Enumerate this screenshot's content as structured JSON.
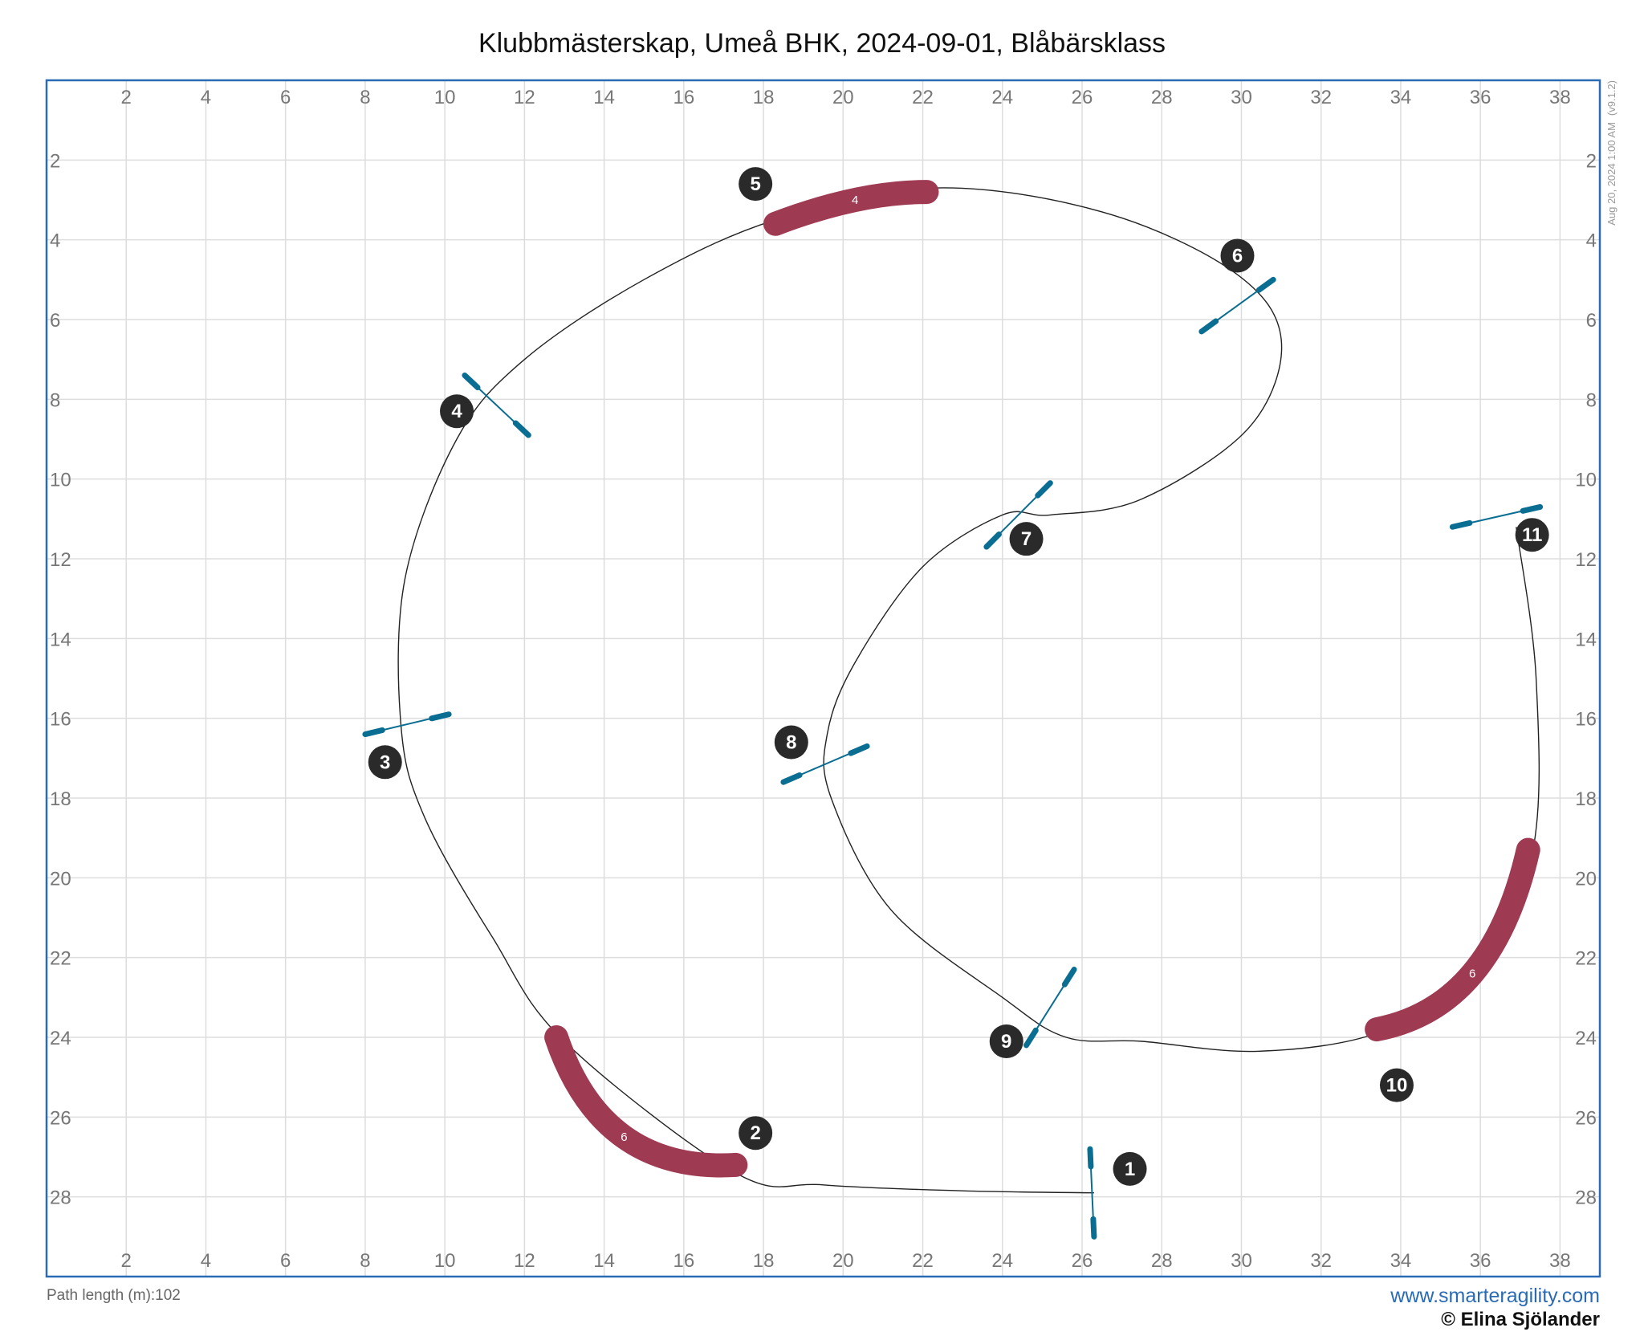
{
  "title": "Klubbmästerskap, Umeå BHK, 2024-09-01, Blåbärsklass",
  "timestamp": "Aug 20, 2024 1:00 AM",
  "version": "(v9.1.2)",
  "path_length_label": "Path length (m):",
  "path_length_value": "102",
  "website": "www.smarteragility.com",
  "copyright": "© Elina Sjölander",
  "colors": {
    "frame": "#2a6bb5",
    "tunnel": "#9e3a52",
    "jump": "#0a6d92",
    "number": "#2a2a2a",
    "path": "#222222",
    "grid": "#dddddd"
  },
  "grid": {
    "x_range": [
      0,
      39
    ],
    "y_range": [
      0,
      30
    ],
    "x_ticks": [
      2,
      4,
      6,
      8,
      10,
      12,
      14,
      16,
      18,
      20,
      22,
      24,
      26,
      28,
      30,
      32,
      34,
      36,
      38
    ],
    "y_ticks": [
      2,
      4,
      6,
      8,
      10,
      12,
      14,
      16,
      18,
      20,
      22,
      24,
      26,
      28
    ]
  },
  "obstacles": [
    {
      "type": "jump",
      "p1": [
        26.2,
        26.8
      ],
      "p2": [
        26.3,
        29.0
      ]
    },
    {
      "type": "tunnel",
      "label": "6",
      "curve": [
        [
          17.3,
          27.2
        ],
        [
          14.5,
          26.5
        ],
        [
          12.8,
          24.0
        ]
      ]
    },
    {
      "type": "jump",
      "p1": [
        8.0,
        16.4
      ],
      "p2": [
        10.1,
        15.9
      ]
    },
    {
      "type": "jump",
      "p1": [
        10.5,
        7.4
      ],
      "p2": [
        12.1,
        8.9
      ]
    },
    {
      "type": "tunnel",
      "label": "4",
      "curve": [
        [
          18.3,
          3.6
        ],
        [
          20.3,
          3.0
        ],
        [
          22.1,
          2.8
        ]
      ]
    },
    {
      "type": "jump",
      "p1": [
        29.0,
        6.3
      ],
      "p2": [
        30.8,
        5.0
      ]
    },
    {
      "type": "jump",
      "p1": [
        23.6,
        11.7
      ],
      "p2": [
        25.2,
        10.1
      ]
    },
    {
      "type": "jump",
      "p1": [
        18.5,
        17.6
      ],
      "p2": [
        20.6,
        16.7
      ]
    },
    {
      "type": "jump",
      "p1": [
        24.6,
        24.2
      ],
      "p2": [
        25.8,
        22.3
      ]
    },
    {
      "type": "tunnel",
      "label": "6",
      "curve": [
        [
          33.4,
          23.8
        ],
        [
          35.8,
          22.4
        ],
        [
          37.2,
          19.3
        ]
      ]
    },
    {
      "type": "jump",
      "p1": [
        35.3,
        11.2
      ],
      "p2": [
        37.5,
        10.7
      ]
    }
  ],
  "numbers": [
    {
      "label": "1",
      "pos": [
        27.2,
        27.3
      ]
    },
    {
      "label": "2",
      "pos": [
        17.8,
        26.4
      ]
    },
    {
      "label": "3",
      "pos": [
        8.5,
        17.1
      ]
    },
    {
      "label": "4",
      "pos": [
        10.3,
        8.3
      ]
    },
    {
      "label": "5",
      "pos": [
        17.8,
        2.6
      ]
    },
    {
      "label": "6",
      "pos": [
        29.9,
        4.4
      ]
    },
    {
      "label": "7",
      "pos": [
        24.6,
        11.5
      ]
    },
    {
      "label": "8",
      "pos": [
        18.7,
        16.6
      ]
    },
    {
      "label": "9",
      "pos": [
        24.1,
        24.1
      ]
    },
    {
      "label": "10",
      "pos": [
        33.9,
        25.2
      ]
    },
    {
      "label": "11",
      "pos": [
        37.3,
        11.4
      ]
    }
  ],
  "path": [
    [
      26.3,
      27.9
    ],
    [
      23.0,
      27.85
    ],
    [
      19.5,
      27.7
    ],
    [
      17.3,
      27.4
    ],
    [
      13.0,
      24.1
    ],
    [
      11.2,
      21.5
    ],
    [
      9.5,
      18.5
    ],
    [
      8.9,
      16.2
    ],
    [
      9.0,
      12.5
    ],
    [
      10.3,
      9.0
    ],
    [
      12.0,
      7.0
    ],
    [
      15.0,
      5.0
    ],
    [
      18.3,
      3.5
    ],
    [
      22.3,
      2.7
    ],
    [
      26.5,
      3.3
    ],
    [
      29.8,
      4.8
    ],
    [
      31.0,
      6.5
    ],
    [
      30.2,
      8.7
    ],
    [
      27.5,
      10.5
    ],
    [
      25.2,
      10.9
    ],
    [
      24.0,
      10.9
    ],
    [
      22.0,
      12.2
    ],
    [
      20.3,
      14.6
    ],
    [
      19.6,
      16.4
    ],
    [
      19.7,
      18.0
    ],
    [
      21.2,
      20.8
    ],
    [
      24.0,
      23.0
    ],
    [
      25.6,
      24.0
    ],
    [
      27.5,
      24.1
    ],
    [
      30.4,
      24.35
    ],
    [
      33.4,
      23.9
    ],
    [
      35.8,
      22.5
    ],
    [
      37.3,
      19.4
    ],
    [
      37.4,
      15.0
    ],
    [
      36.9,
      11.2
    ]
  ]
}
